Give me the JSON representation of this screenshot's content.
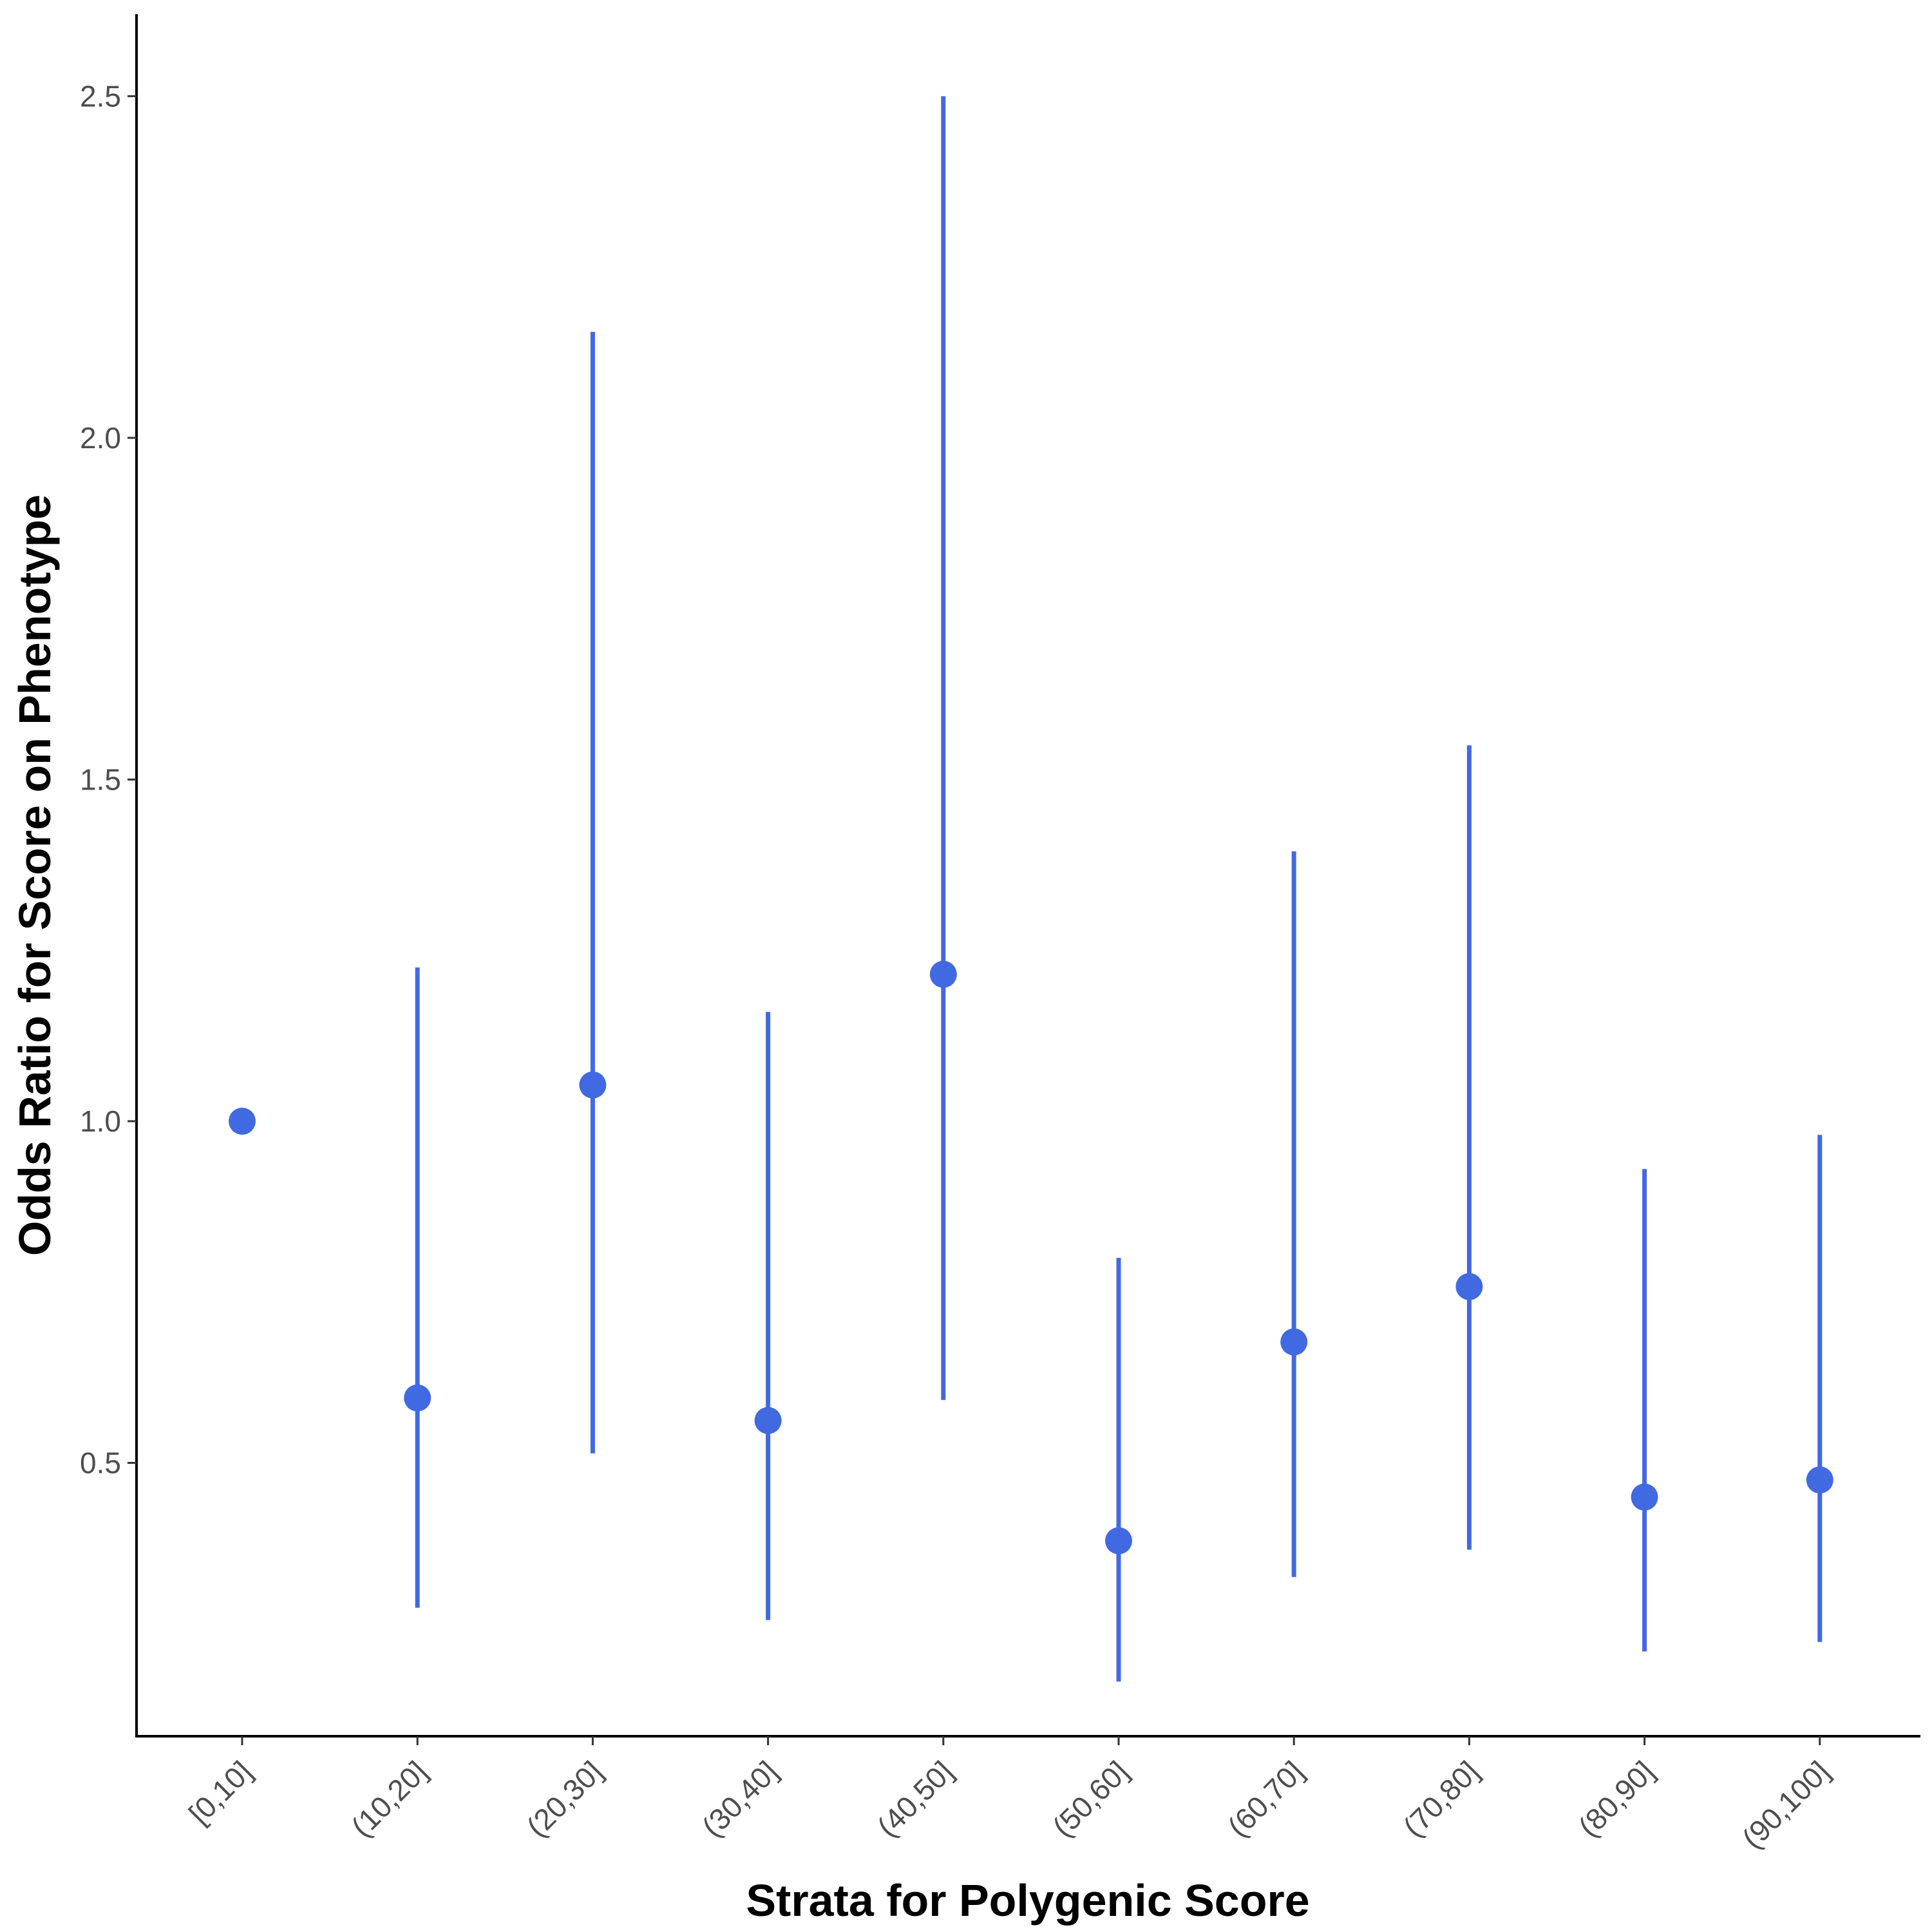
{
  "chart_data": {
    "type": "scatter",
    "subtype": "point-with-error-bars",
    "title": "",
    "xlabel": "Strata for Polygenic Score",
    "ylabel": "Odds Ratio for Score on Phenotype",
    "categories": [
      "[0,10]",
      "(10,20]",
      "(20,30]",
      "(30,40]",
      "(40,50]",
      "(50,60]",
      "(60,70]",
      "(70,80]",
      "(80,90]",
      "(90,100]"
    ],
    "values": [
      1.0,
      0.595,
      1.053,
      0.562,
      1.215,
      0.386,
      0.677,
      0.758,
      0.45,
      0.475
    ],
    "lower": [
      null,
      0.288,
      0.514,
      0.27,
      0.592,
      0.18,
      0.333,
      0.373,
      0.224,
      0.238
    ],
    "upper": [
      null,
      1.225,
      2.155,
      1.16,
      2.5,
      0.8,
      1.395,
      1.55,
      0.93,
      0.98
    ],
    "ylim": [
      0.1,
      2.62
    ],
    "yticks": [
      "0.5",
      "1.0",
      "1.5",
      "2.0",
      "2.5"
    ],
    "ytick_values": [
      0.5,
      1.0,
      1.5,
      2.0,
      2.5
    ],
    "grid": false,
    "legend": "none",
    "color": "#4169E1"
  }
}
